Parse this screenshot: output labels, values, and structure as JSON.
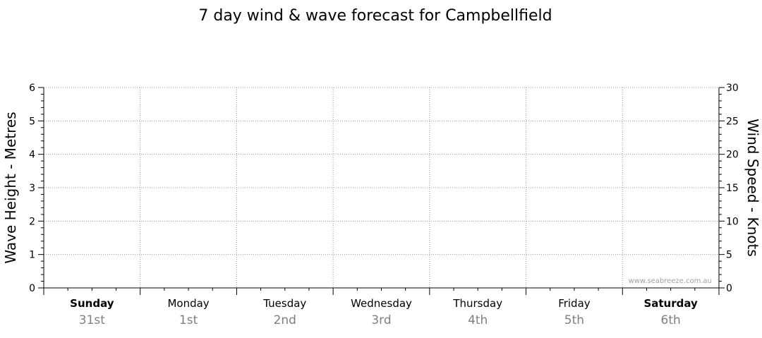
{
  "chart_data": {
    "type": "line",
    "title": "7 day wind & wave forecast for Campbellfield",
    "y_left": {
      "label": "Wave Height - Metres",
      "range": [
        0,
        6
      ],
      "ticks": [
        "0",
        "1",
        "2",
        "3",
        "4",
        "5",
        "6"
      ]
    },
    "y_right": {
      "label": "Wind Speed - Knots",
      "range": [
        0,
        30
      ],
      "ticks": [
        "0",
        "5",
        "10",
        "15",
        "20",
        "25",
        "30"
      ]
    },
    "days": [
      {
        "name": "Sunday",
        "date": "31st",
        "weekend": true
      },
      {
        "name": "Monday",
        "date": "1st",
        "weekend": false
      },
      {
        "name": "Tuesday",
        "date": "2nd",
        "weekend": false
      },
      {
        "name": "Wednesday",
        "date": "3rd",
        "weekend": false
      },
      {
        "name": "Thursday",
        "date": "4th",
        "weekend": false
      },
      {
        "name": "Friday",
        "date": "5th",
        "weekend": false
      },
      {
        "name": "Saturday",
        "date": "6th",
        "weekend": true
      }
    ],
    "series": [],
    "grid": true,
    "watermark": "www.seabreeze.com.au",
    "colors": {
      "axis": "#000000",
      "grid": "#9a9a9a",
      "date_text": "#808080",
      "watermark": "#a0a0a0"
    }
  }
}
